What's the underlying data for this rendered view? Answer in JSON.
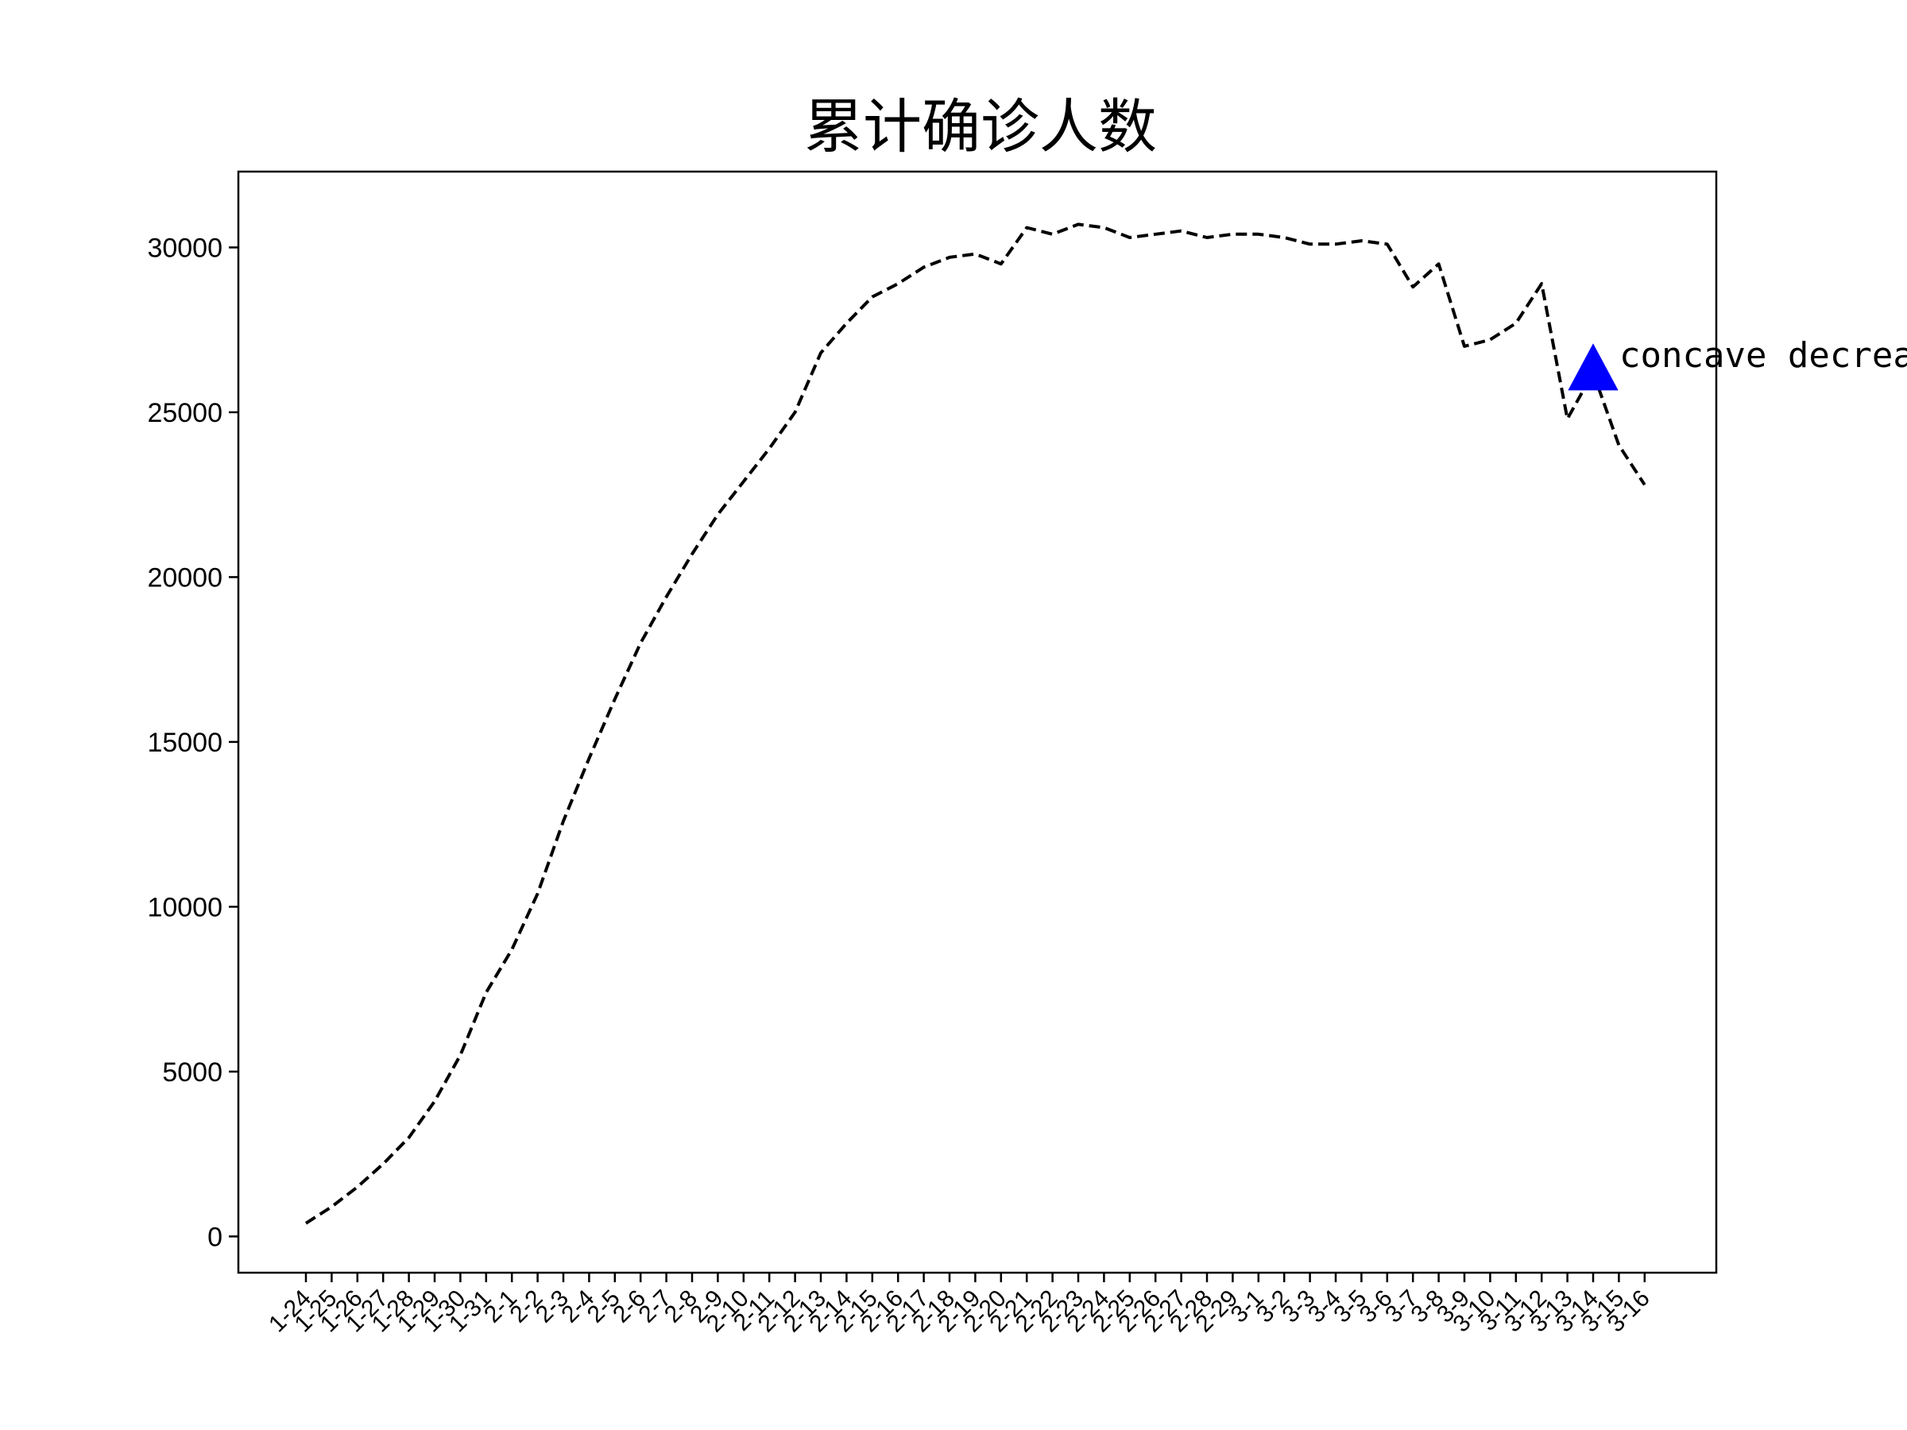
{
  "chart_data": {
    "type": "line",
    "title": "累计确诊人数",
    "xlabel": "",
    "ylabel": "",
    "ylim": [
      -1100,
      32300
    ],
    "yticks": [
      0,
      5000,
      10000,
      15000,
      20000,
      25000,
      30000
    ],
    "grid": false,
    "line_style": "dashed",
    "line_color": "#000000",
    "categories": [
      "1-24",
      "1-25",
      "1-26",
      "1-27",
      "1-28",
      "1-29",
      "1-30",
      "1-31",
      "2-1",
      "2-2",
      "2-3",
      "2-4",
      "2-5",
      "2-6",
      "2-7",
      "2-8",
      "2-9",
      "2-10",
      "2-11",
      "2-12",
      "2-13",
      "2-14",
      "2-15",
      "2-16",
      "2-17",
      "2-18",
      "2-19",
      "2-20",
      "2-21",
      "2-22",
      "2-23",
      "2-24",
      "2-25",
      "2-26",
      "2-27",
      "2-28",
      "2-29",
      "3-1",
      "3-2",
      "3-3",
      "3-4",
      "3-5",
      "3-6",
      "3-7",
      "3-8",
      "3-9",
      "3-10",
      "3-11",
      "3-12",
      "3-13",
      "3-14",
      "3-15",
      "3-16"
    ],
    "series": [
      {
        "values": [
          400,
          900,
          1500,
          2200,
          3000,
          4100,
          5500,
          7400,
          8700,
          10400,
          12600,
          14500,
          16300,
          18000,
          19400,
          20700,
          21900,
          22900,
          23900,
          25000,
          26800,
          27700,
          28500,
          28900,
          29400,
          29700,
          29800,
          29500,
          30600,
          30400,
          30700,
          30600,
          30300,
          30400,
          30500,
          30300,
          30400,
          30400,
          30300,
          30100,
          30100,
          30200,
          30100,
          28800,
          29500,
          27000,
          27200,
          27700,
          28900,
          24800,
          26200,
          24000,
          22800
        ]
      }
    ],
    "annotation": {
      "text": "concave decrease",
      "category": "3-14",
      "value": 26200,
      "marker": "triangle-up",
      "marker_color": "#0000ff"
    }
  }
}
